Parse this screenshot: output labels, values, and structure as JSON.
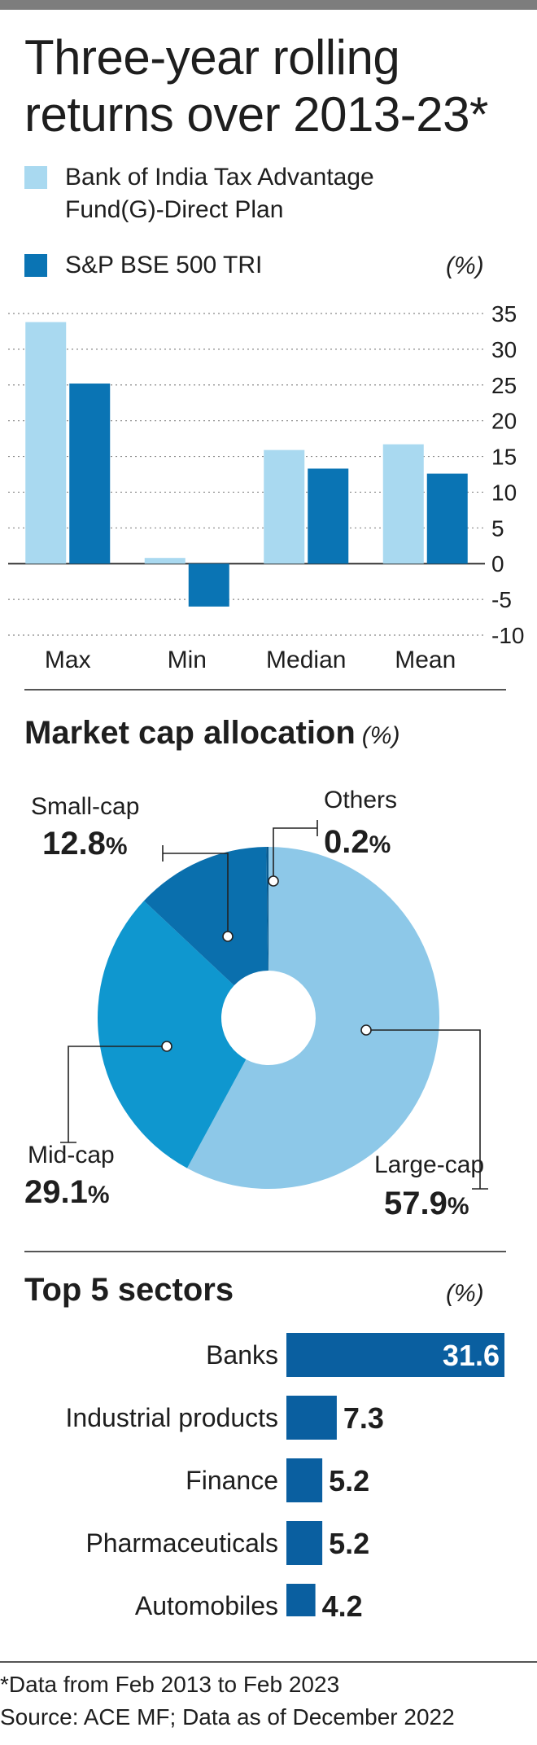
{
  "title": "Three-year rolling returns over 2013-23*",
  "legend": [
    {
      "label": "Bank of India Tax Advantage Fund(G)-Direct Plan",
      "color": "#a9d9f0"
    },
    {
      "label": "S&P BSE 500 TRI",
      "color": "#0a74b4"
    }
  ],
  "returns_unit": "(%)",
  "market_cap": {
    "title": "Market cap allocation",
    "unit": "(%)",
    "slices": [
      {
        "label": "Large-cap",
        "value": 57.9,
        "display": "57.9",
        "color": "#8dc8e8"
      },
      {
        "label": "Mid-cap",
        "value": 29.1,
        "display": "29.1",
        "color": "#0f97cf"
      },
      {
        "label": "Small-cap",
        "value": 12.8,
        "display": "12.8",
        "color": "#0a6fad"
      },
      {
        "label": "Others",
        "value": 0.2,
        "display": "0.2",
        "color": "#0a5a8e"
      }
    ],
    "pct_sign": "%"
  },
  "sectors": {
    "title": "Top 5 sectors",
    "unit": "(%)",
    "color": "#0a5fa0"
  },
  "footer": {
    "note": "*Data from Feb 2013 to Feb 2023",
    "source": "Source: ACE MF; Data as of December 2022"
  },
  "chart_data": [
    {
      "type": "bar",
      "categories": [
        "Max",
        "Min",
        "Median",
        "Mean"
      ],
      "series": [
        {
          "name": "Bank of India Tax Advantage Fund(G)-Direct Plan",
          "values": [
            33.8,
            0.8,
            15.9,
            16.7
          ]
        },
        {
          "name": "S&P BSE 500 TRI",
          "values": [
            25.2,
            -6.0,
            13.3,
            12.6
          ]
        }
      ],
      "ylim": [
        -10,
        35
      ],
      "yticks": [
        35,
        30,
        25,
        20,
        15,
        10,
        5,
        0,
        -5,
        -10
      ],
      "grid": true,
      "legend": "top-left"
    },
    {
      "type": "pie",
      "categories": [
        "Large-cap",
        "Mid-cap",
        "Small-cap",
        "Others"
      ],
      "values": [
        57.9,
        29.1,
        12.8,
        0.2
      ]
    },
    {
      "type": "bar",
      "orientation": "horizontal",
      "categories": [
        "Banks",
        "Industrial products",
        "Finance",
        "Pharmaceuticals",
        "Automobiles"
      ],
      "values": [
        31.6,
        7.3,
        5.2,
        5.2,
        4.2
      ],
      "labels": [
        "31.6",
        "7.3",
        "5.2",
        "5.2",
        "4.2"
      ]
    }
  ]
}
